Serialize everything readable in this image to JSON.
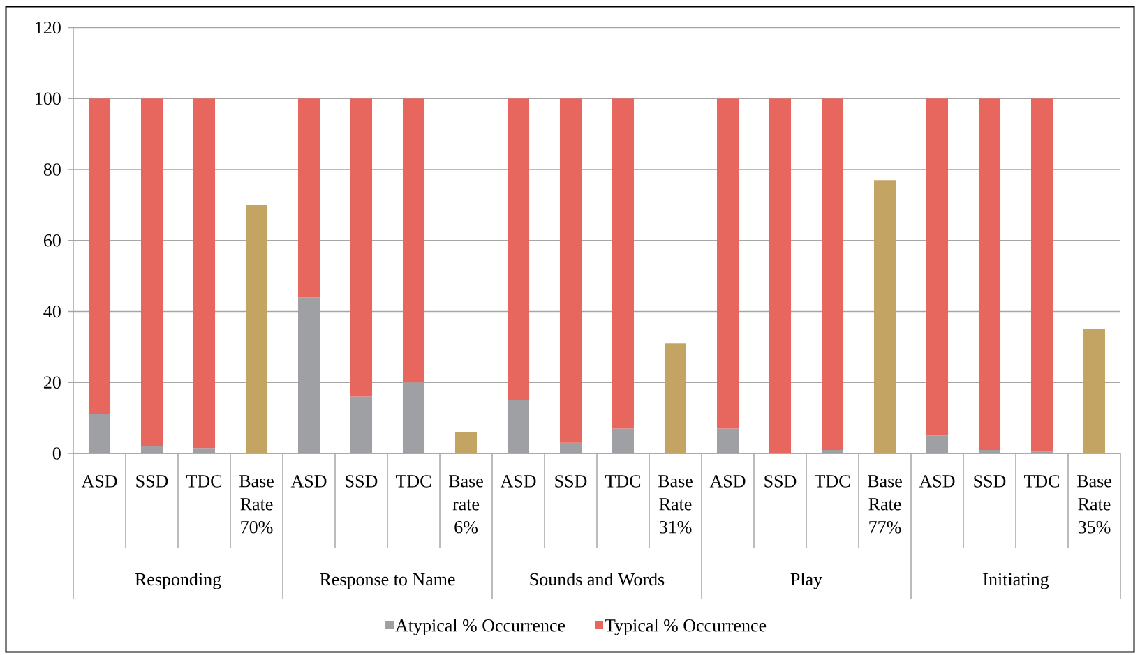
{
  "chart_data": {
    "type": "bar",
    "stacked": true,
    "categories": [
      "ASD",
      "SSD",
      "TDC",
      "Base Rate 70%",
      "ASD",
      "SSD",
      "TDC",
      "Base rate 6%",
      "ASD",
      "SSD",
      "TDC",
      "Base Rate 31%",
      "ASD",
      "SSD",
      "TDC",
      "Base Rate 77%",
      "ASD",
      "SSD",
      "TDC",
      "Base Rate 35%"
    ],
    "series": [
      {
        "name": "Atypical % Occurrence",
        "color": "#9fa0a4",
        "colors": [
          "#9fa0a4",
          "#9fa0a4",
          "#9fa0a4",
          "#c4a463",
          "#9fa0a4",
          "#9fa0a4",
          "#9fa0a4",
          "#c4a463",
          "#9fa0a4",
          "#9fa0a4",
          "#9fa0a4",
          "#c4a463",
          "#9fa0a4",
          "#9fa0a4",
          "#9fa0a4",
          "#c4a463",
          "#9fa0a4",
          "#9fa0a4",
          "#9fa0a4",
          "#c4a463"
        ],
        "values": [
          11,
          2,
          1.5,
          70,
          44,
          16,
          20,
          6,
          15,
          3,
          7,
          31,
          7,
          0,
          1,
          77,
          5,
          1,
          0.5,
          35
        ]
      },
      {
        "name": "Typical % Occurrence",
        "color": "#e7675f",
        "values": [
          89,
          98,
          98.5,
          null,
          56,
          84,
          80,
          null,
          85,
          97,
          93,
          null,
          93,
          100,
          99,
          null,
          95,
          99,
          99.5,
          null
        ]
      }
    ],
    "ylim": [
      0,
      120
    ],
    "yticks": [
      0,
      20,
      40,
      60,
      80,
      100,
      120
    ],
    "grid": "y",
    "legend": "bottom",
    "annotations": [
      "Responding",
      "Response to Name",
      "Sounds and Words",
      "Play",
      "Initiating"
    ]
  }
}
